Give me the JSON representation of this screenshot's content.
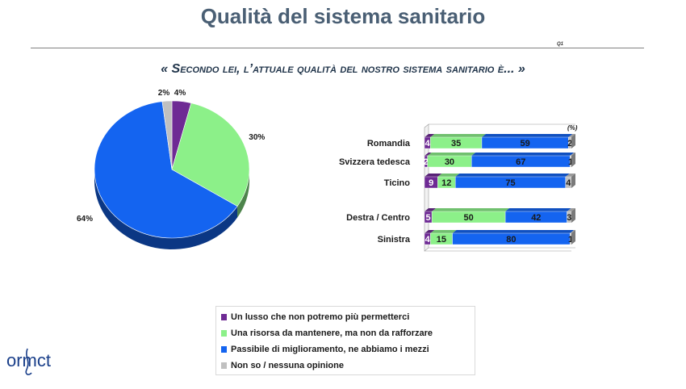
{
  "page": {
    "title": "Qualità del sistema sanitario",
    "code": "Q1",
    "question": "« Secondo lei, l’attuale qualità del nostro sistema sanitario è... »",
    "unit": "(%)",
    "logo_text": "ormct"
  },
  "colors": {
    "lusso": "#6e2a94",
    "risorsa": "#8cf089",
    "passibile": "#1464f0",
    "nonso": "#c0c0c0"
  },
  "legend": [
    {
      "label": "Un lusso che non potremo più permetterci",
      "color": "#6e2a94"
    },
    {
      "label": "Una risorsa da mantenere, ma non da rafforzare",
      "color": "#8cf089"
    },
    {
      "label": "Passibile di miglioramento, ne abbiamo i mezzi",
      "color": "#1464f0"
    },
    {
      "label": "Non so / nessuna opinione",
      "color": "#c0c0c0"
    }
  ],
  "chart_data": [
    {
      "type": "pie",
      "labels": [
        "Un lusso che non potremo più permetterci",
        "Una risorsa da mantenere, ma non da rafforzare",
        "Passibile di miglioramento, ne abbiamo i mezzi",
        "Non so / nessuna opinione"
      ],
      "values": [
        4,
        30,
        64,
        2
      ],
      "data_labels": [
        "4%",
        "30%",
        "64%",
        "2%"
      ]
    },
    {
      "type": "bar",
      "orientation": "horizontal",
      "stacked": true,
      "unit": "(%)",
      "categories": [
        "Romandia",
        "Svizzera tedesca",
        "Ticino",
        "Destra / Centro",
        "Sinistra"
      ],
      "series": [
        {
          "name": "Un lusso che non potremo più permetterci",
          "values": [
            4,
            2,
            9,
            5,
            4
          ]
        },
        {
          "name": "Una risorsa da mantenere, ma non da rafforzare",
          "values": [
            35,
            30,
            12,
            50,
            15
          ]
        },
        {
          "name": "Passibile di miglioramento, ne abbiamo i mezzi",
          "values": [
            59,
            67,
            75,
            42,
            80
          ]
        },
        {
          "name": "Non so / nessuna opinione",
          "values": [
            2,
            1,
            4,
            3,
            1
          ]
        }
      ]
    }
  ]
}
